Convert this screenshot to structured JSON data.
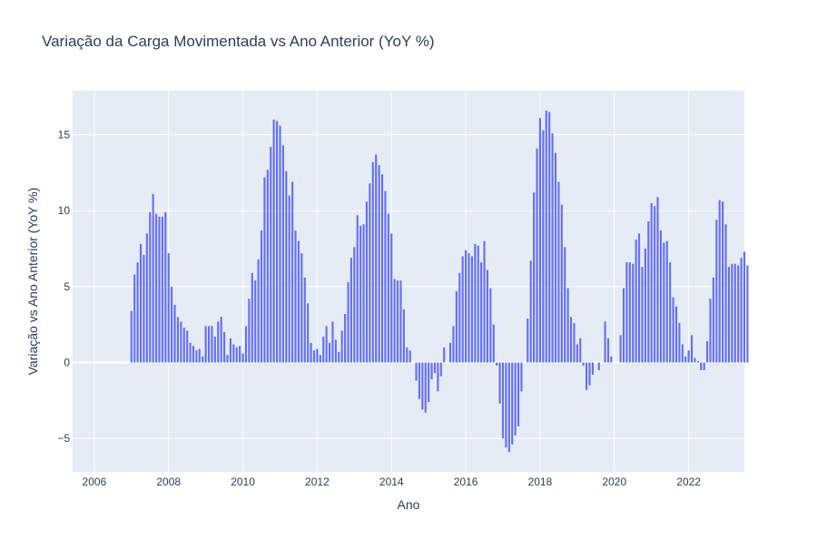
{
  "chart_data": {
    "type": "bar",
    "title": "Variação da Carga Movimentada vs Ano Anterior (YoY %)",
    "xlabel": "Ano",
    "ylabel": "Variação vs Ano Anterior (YoY %)",
    "x_start": "2006-01",
    "x_frequency": "monthly",
    "x_ticks": [
      "2006",
      "2008",
      "2010",
      "2012",
      "2014",
      "2016",
      "2018",
      "2020",
      "2022"
    ],
    "y_ticks": [
      -5,
      0,
      5,
      10,
      15
    ],
    "y_tick_labels": [
      "−5",
      "0",
      "5",
      "10",
      "15"
    ],
    "xlim": [
      "2005-06",
      "2023-07"
    ],
    "ylim": [
      -7.2,
      17.9
    ],
    "grid": true,
    "colors": {
      "bar": "#636efa",
      "plot_bg": "#e5ecf6",
      "grid": "#ffffff",
      "text": "#2a3f5f"
    },
    "values": [
      0,
      0,
      0,
      0,
      0,
      0,
      0,
      0,
      0,
      0,
      0,
      0,
      3.4,
      5.8,
      6.6,
      7.8,
      7.1,
      8.5,
      9.9,
      11.1,
      9.8,
      9.6,
      9.6,
      9.9,
      7.2,
      5.0,
      3.8,
      3.0,
      2.7,
      2.3,
      2.1,
      1.3,
      1.1,
      0.8,
      0.9,
      0.4,
      2.4,
      2.4,
      2.4,
      1.7,
      2.7,
      3.0,
      2.0,
      0.5,
      1.6,
      1.2,
      1.0,
      1.1,
      0.6,
      2.4,
      4.2,
      5.9,
      5.4,
      6.8,
      8.7,
      12.2,
      12.7,
      14.2,
      16.0,
      15.9,
      15.6,
      14.3,
      12.6,
      11.0,
      11.9,
      8.7,
      8.0,
      7.2,
      5.6,
      3.9,
      1.3,
      0.8,
      0.9,
      0.5,
      1.7,
      2.4,
      1.3,
      2.7,
      1.5,
      0.7,
      2.1,
      3.2,
      5.3,
      6.9,
      7.6,
      9.7,
      9.0,
      9.1,
      10.6,
      11.8,
      13.2,
      13.7,
      13.0,
      12.4,
      11.3,
      9.8,
      8.5,
      5.5,
      5.4,
      5.4,
      3.5,
      1.0,
      0.8,
      0,
      -1.2,
      -2.4,
      -3.1,
      -3.3,
      -2.6,
      -1.1,
      -0.7,
      -1.9,
      -0.9,
      1.0,
      0,
      1.3,
      2.4,
      4.7,
      5.9,
      7.0,
      7.4,
      7.2,
      7.0,
      7.8,
      7.7,
      6.6,
      8.0,
      6.1,
      4.9,
      2.5,
      -0.2,
      -2.7,
      -5.0,
      -5.6,
      -5.9,
      -5.4,
      -4.8,
      -4.2,
      -1.9,
      0,
      2.9,
      6.7,
      11.2,
      14.1,
      16.1,
      15.3,
      16.6,
      16.5,
      15.1,
      13.8,
      11.9,
      10.4,
      7.6,
      4.9,
      3.0,
      2.6,
      1.2,
      1.6,
      -0.2,
      -1.8,
      -1.5,
      -0.8,
      0,
      -0.5,
      0,
      2.7,
      1.6,
      0.4,
      0,
      0,
      1.8,
      4.9,
      6.6,
      6.6,
      6.5,
      8.1,
      8.5,
      6.3,
      7.5,
      9.3,
      10.5,
      10.3,
      10.9,
      8.7,
      7.9,
      8.0,
      6.6,
      4.3,
      3.7,
      2.6,
      1.2,
      0.4,
      0.8,
      1.8,
      0.3,
      0.1,
      -0.5,
      -0.5,
      1.4,
      4.2,
      5.6,
      9.4,
      10.7,
      10.6,
      9.1,
      6.3,
      6.5,
      6.5,
      6.4,
      6.9,
      7.3,
      6.4
    ]
  }
}
